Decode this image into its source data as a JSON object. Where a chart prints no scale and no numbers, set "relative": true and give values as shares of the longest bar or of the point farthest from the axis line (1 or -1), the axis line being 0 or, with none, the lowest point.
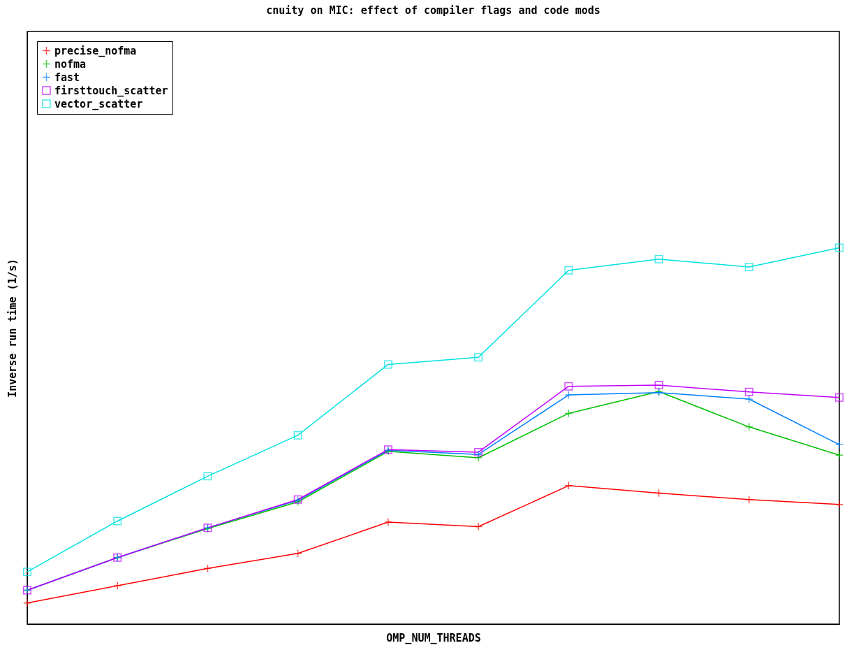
{
  "chart_data": {
    "type": "line",
    "title": "cnuity on MIC: effect of compiler flags and code mods",
    "xlabel": "OMP_NUM_THREADS",
    "ylabel": "Inverse run time (1/s)",
    "relative": true,
    "legend": "top left",
    "categories": [
      null,
      null,
      null,
      null,
      null,
      null,
      null,
      null,
      null,
      null
    ],
    "series": [
      {
        "name": "precise_nofma",
        "color": "#ff0000",
        "marker": "cross",
        "values": [
          0.056,
          0.102,
          0.148,
          0.188,
          0.271,
          0.259,
          0.368,
          0.348,
          0.331,
          0.318
        ]
      },
      {
        "name": "nofma",
        "color": "#00c000",
        "marker": "cross",
        "values": [
          0.09,
          0.177,
          0.254,
          0.325,
          0.459,
          0.442,
          0.56,
          0.618,
          0.524,
          0.449
        ]
      },
      {
        "name": "fast",
        "color": "#0080ff",
        "marker": "cross",
        "values": [
          0.09,
          0.177,
          0.256,
          0.329,
          0.462,
          0.451,
          0.609,
          0.615,
          0.598,
          0.477
        ]
      },
      {
        "name": "firsttouch_scatter",
        "color": "#c000ff",
        "marker": "square",
        "values": [
          0.09,
          0.177,
          0.256,
          0.331,
          0.464,
          0.457,
          0.632,
          0.635,
          0.617,
          0.602
        ]
      },
      {
        "name": "vector_scatter",
        "color": "#00e0e0",
        "marker": "square",
        "values": [
          0.139,
          0.274,
          0.393,
          0.502,
          0.69,
          0.709,
          0.94,
          0.97,
          0.949,
          1
        ]
      }
    ]
  }
}
